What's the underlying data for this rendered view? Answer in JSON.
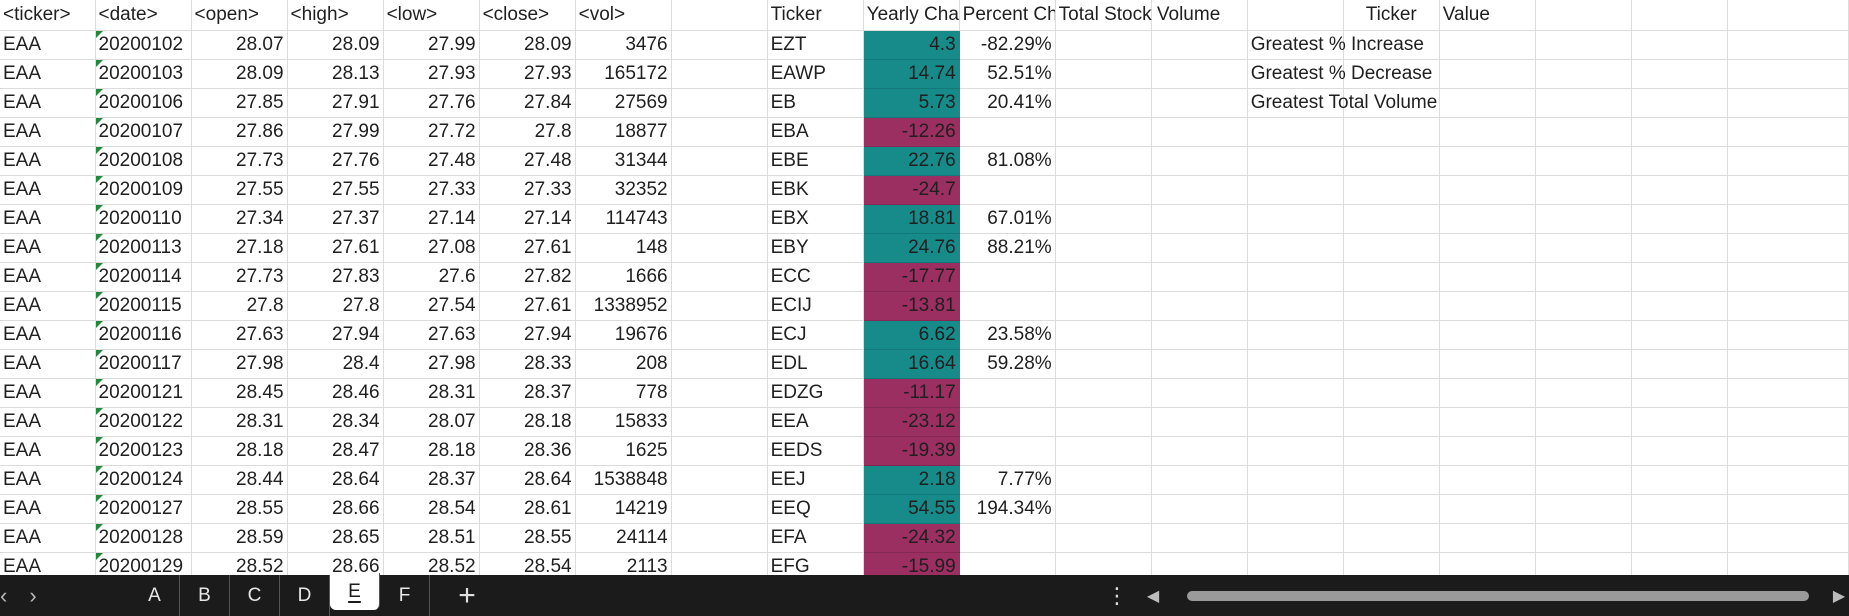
{
  "sheet": {
    "header": [
      "<ticker>",
      "<date>",
      "<open>",
      "<high>",
      "<low>",
      "<close>",
      "<vol>",
      "",
      "Ticker",
      "Yearly Change",
      "Percent Change",
      "Total Stock Volume",
      "",
      "",
      "Ticker",
      "Value"
    ],
    "summary_labels": [
      "Greatest % Increase",
      "Greatest % Decrease",
      "Greatest Total Volume"
    ],
    "rows": [
      [
        "EAA",
        "20200102",
        "28.07",
        "28.09",
        "27.99",
        "28.09",
        "3476",
        "EZT",
        "4.3",
        "-82.29%"
      ],
      [
        "EAA",
        "20200103",
        "28.09",
        "28.13",
        "27.93",
        "27.93",
        "165172",
        "EAWP",
        "14.74",
        "52.51%"
      ],
      [
        "EAA",
        "20200106",
        "27.85",
        "27.91",
        "27.76",
        "27.84",
        "27569",
        "EB",
        "5.73",
        "20.41%"
      ],
      [
        "EAA",
        "20200107",
        "27.86",
        "27.99",
        "27.72",
        "27.8",
        "18877",
        "EBA",
        "-12.26",
        ""
      ],
      [
        "EAA",
        "20200108",
        "27.73",
        "27.76",
        "27.48",
        "27.48",
        "31344",
        "EBE",
        "22.76",
        "81.08%"
      ],
      [
        "EAA",
        "20200109",
        "27.55",
        "27.55",
        "27.33",
        "27.33",
        "32352",
        "EBK",
        "-24.7",
        ""
      ],
      [
        "EAA",
        "20200110",
        "27.34",
        "27.37",
        "27.14",
        "27.14",
        "114743",
        "EBX",
        "18.81",
        "67.01%"
      ],
      [
        "EAA",
        "20200113",
        "27.18",
        "27.61",
        "27.08",
        "27.61",
        "148",
        "EBY",
        "24.76",
        "88.21%"
      ],
      [
        "EAA",
        "20200114",
        "27.73",
        "27.83",
        "27.6",
        "27.82",
        "1666",
        "ECC",
        "-17.77",
        ""
      ],
      [
        "EAA",
        "20200115",
        "27.8",
        "27.8",
        "27.54",
        "27.61",
        "1338952",
        "ECIJ",
        "-13.81",
        ""
      ],
      [
        "EAA",
        "20200116",
        "27.63",
        "27.94",
        "27.63",
        "27.94",
        "19676",
        "ECJ",
        "6.62",
        "23.58%"
      ],
      [
        "EAA",
        "20200117",
        "27.98",
        "28.4",
        "27.98",
        "28.33",
        "208",
        "EDL",
        "16.64",
        "59.28%"
      ],
      [
        "EAA",
        "20200121",
        "28.45",
        "28.46",
        "28.31",
        "28.37",
        "778",
        "EDZG",
        "-11.17",
        ""
      ],
      [
        "EAA",
        "20200122",
        "28.31",
        "28.34",
        "28.07",
        "28.18",
        "15833",
        "EEA",
        "-23.12",
        ""
      ],
      [
        "EAA",
        "20200123",
        "28.18",
        "28.47",
        "28.18",
        "28.36",
        "1625",
        "EEDS",
        "-19.39",
        ""
      ],
      [
        "EAA",
        "20200124",
        "28.44",
        "28.64",
        "28.37",
        "28.64",
        "1538848",
        "EEJ",
        "2.18",
        "7.77%"
      ],
      [
        "EAA",
        "20200127",
        "28.55",
        "28.66",
        "28.54",
        "28.61",
        "14219",
        "EEQ",
        "54.55",
        "194.34%"
      ],
      [
        "EAA",
        "20200128",
        "28.59",
        "28.65",
        "28.51",
        "28.55",
        "24114",
        "EFA",
        "-24.32",
        ""
      ],
      [
        "EAA",
        "20200129",
        "28.52",
        "28.66",
        "28.52",
        "28.54",
        "2113",
        "EFG",
        "-15.99",
        ""
      ]
    ]
  },
  "tabbar": {
    "prev_glyph": "‹",
    "next_glyph": "›",
    "tabs": [
      "A",
      "B",
      "C",
      "D",
      "E",
      "F"
    ],
    "active_tab": "E",
    "add_glyph": "+",
    "options_glyph": "⋮"
  },
  "colors": {
    "positive_fill": "#178a8a",
    "negative_fill": "#9b2f62",
    "tabbar_bg": "#1b1b1b"
  }
}
